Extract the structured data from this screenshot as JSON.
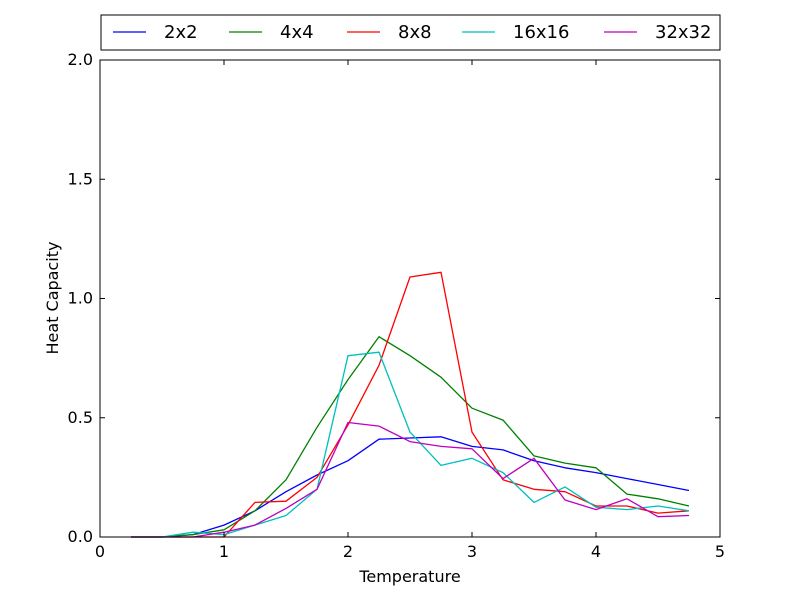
{
  "chart_data": {
    "type": "line",
    "title": "",
    "xlabel": "Temperature",
    "ylabel": "Heat Capacity",
    "xlim": [
      0,
      5
    ],
    "ylim": [
      0,
      2.0
    ],
    "xticks": [
      0,
      1,
      2,
      3,
      4,
      5
    ],
    "xtick_labels": [
      "0",
      "1",
      "2",
      "3",
      "4",
      "5"
    ],
    "yticks": [
      0,
      0.5,
      1.0,
      1.5,
      2.0
    ],
    "ytick_labels": [
      "0.0",
      "0.5",
      "1.0",
      "1.5",
      "2.0"
    ],
    "grid": false,
    "legend_position": "top, above plot",
    "x": [
      0.25,
      0.5,
      0.75,
      1.0,
      1.25,
      1.5,
      1.75,
      2.0,
      2.25,
      2.5,
      2.75,
      3.0,
      3.25,
      3.5,
      3.75,
      4.0,
      4.25,
      4.5,
      4.75
    ],
    "series": [
      {
        "name": "2x2",
        "color": "#0000ff",
        "values": [
          0.0,
          0.0,
          0.01,
          0.05,
          0.11,
          0.19,
          0.26,
          0.32,
          0.41,
          0.415,
          0.42,
          0.38,
          0.365,
          0.32,
          0.29,
          0.27,
          0.245,
          0.22,
          0.195
        ]
      },
      {
        "name": "4x4",
        "color": "#008000",
        "values": [
          0.0,
          0.0,
          0.01,
          0.03,
          0.11,
          0.24,
          0.46,
          0.66,
          0.84,
          0.76,
          0.67,
          0.54,
          0.49,
          0.34,
          0.31,
          0.29,
          0.18,
          0.16,
          0.13
        ]
      },
      {
        "name": "8x8",
        "color": "#ff0000",
        "values": [
          0.0,
          0.0,
          0.0,
          0.0,
          0.145,
          0.15,
          0.25,
          0.47,
          0.72,
          1.09,
          1.11,
          0.44,
          0.24,
          0.2,
          0.19,
          0.13,
          0.13,
          0.1,
          0.11
        ]
      },
      {
        "name": "16x16",
        "color": "#00bfbf",
        "values": [
          0.0,
          0.0,
          0.02,
          0.01,
          0.05,
          0.09,
          0.2,
          0.76,
          0.775,
          0.44,
          0.3,
          0.33,
          0.27,
          0.145,
          0.21,
          0.125,
          0.115,
          0.13,
          0.11
        ]
      },
      {
        "name": "32x32",
        "color": "#bf00bf",
        "values": [
          0.0,
          0.0,
          0.0,
          0.02,
          0.05,
          0.12,
          0.2,
          0.48,
          0.465,
          0.4,
          0.38,
          0.37,
          0.245,
          0.33,
          0.155,
          0.115,
          0.16,
          0.085,
          0.09
        ]
      }
    ]
  }
}
